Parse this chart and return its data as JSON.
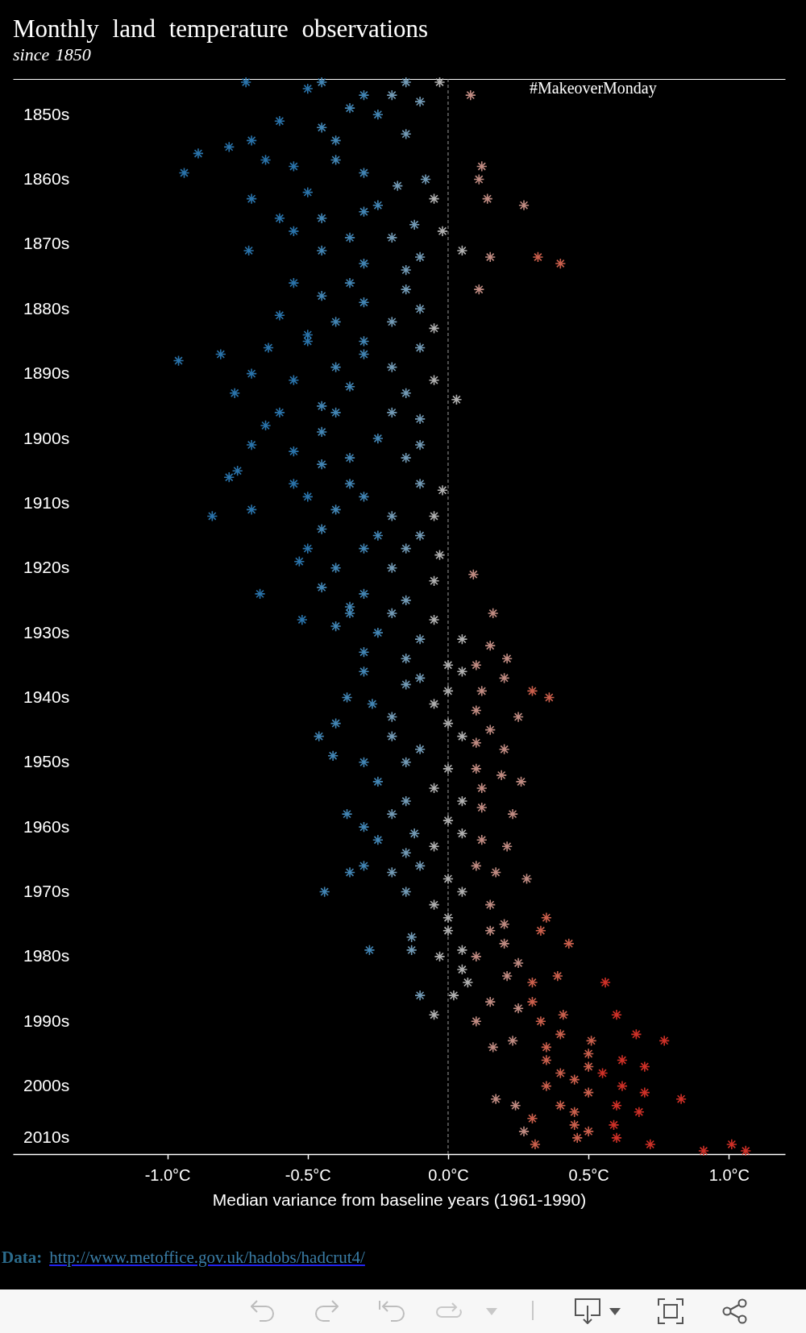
{
  "chart_data": {
    "type": "scatter",
    "orientation": "horizontal",
    "title": "Monthly land temperature observations",
    "subtitle": "since 1850",
    "xlabel": "Median variance from baseline years (1961-1990)",
    "annotations": [
      "#MakeoverMonday",
      "Data:",
      "http://www.metoffice.gov.uk/hadobs/hadcrut4/"
    ],
    "marker": "cross",
    "xlim": [
      -1.55,
      1.2
    ],
    "xticks": [
      {
        "value": -1,
        "label": "-1.0°C"
      },
      {
        "value": -0.5,
        "label": "-0.5°C"
      },
      {
        "value": 0,
        "label": "0.0°C"
      },
      {
        "value": 0.5,
        "label": "0.5°C"
      },
      {
        "value": 1,
        "label": "1.0°C"
      }
    ],
    "categories": [
      null,
      null,
      null,
      null,
      null,
      "1850s",
      null,
      null,
      null,
      null,
      null,
      null,
      null,
      null,
      null,
      "1860s",
      null,
      null,
      null,
      null,
      null,
      null,
      null,
      null,
      null,
      "1870s",
      null,
      null,
      null,
      null,
      null,
      null,
      null,
      null,
      null,
      "1880s",
      null,
      null,
      null,
      null,
      null,
      null,
      null,
      null,
      null,
      "1890s",
      null,
      null,
      null,
      null,
      null,
      null,
      null,
      null,
      null,
      "1900s",
      null,
      null,
      null,
      null,
      null,
      null,
      null,
      null,
      null,
      "1910s",
      null,
      null,
      null,
      null,
      null,
      null,
      null,
      null,
      null,
      "1920s",
      null,
      null,
      null,
      null,
      null,
      null,
      null,
      null,
      null,
      "1930s",
      null,
      null,
      null,
      null,
      null,
      null,
      null,
      null,
      null,
      "1940s",
      null,
      null,
      null,
      null,
      null,
      null,
      null,
      null,
      null,
      "1950s",
      null,
      null,
      null,
      null,
      null,
      null,
      null,
      null,
      null,
      "1960s",
      null,
      null,
      null,
      null,
      null,
      null,
      null,
      null,
      null,
      "1970s",
      null,
      null,
      null,
      null,
      null,
      null,
      null,
      null,
      null,
      "1980s",
      null,
      null,
      null,
      null,
      null,
      null,
      null,
      null,
      null,
      "1990s",
      null,
      null,
      null,
      null,
      null,
      null,
      null,
      null,
      null,
      "2000s",
      null,
      null,
      null,
      null,
      null,
      null,
      null,
      "2010s",
      null,
      null
    ],
    "ref_lines": [
      {
        "axis": "x",
        "value": 0,
        "line_style": "dashed",
        "color": "#9a9a9a"
      }
    ],
    "series": [
      {
        "color": "#2f80bd",
        "values": [
          -0.72,
          -0.5,
          null,
          null,
          null,
          null,
          -0.6,
          null,
          null,
          -0.7,
          -0.78,
          -0.89,
          -0.65,
          -0.55,
          -0.94,
          null,
          null,
          -0.5,
          -0.7,
          null,
          null,
          -0.6,
          null,
          -0.55,
          null,
          null,
          -0.71,
          null,
          null,
          null,
          null,
          -0.55,
          null,
          null,
          null,
          null,
          -0.6,
          null,
          null,
          -0.5,
          -0.5,
          -0.64,
          -0.81,
          -0.96,
          null,
          -0.7,
          -0.55,
          null,
          -0.76,
          null,
          null,
          -0.6,
          null,
          -0.65,
          null,
          null,
          -0.7,
          -0.55,
          null,
          null,
          -0.75,
          -0.78,
          -0.55,
          null,
          -0.5,
          null,
          -0.7,
          -0.84,
          null,
          null,
          null,
          null,
          -0.5,
          null,
          -0.53,
          null,
          null,
          null,
          null,
          -0.67,
          null,
          null,
          null,
          -0.52,
          null,
          null,
          null,
          null,
          null,
          null,
          null,
          null,
          null,
          null,
          null,
          null,
          null,
          null,
          null,
          null,
          null,
          null,
          null,
          null,
          null,
          null,
          null,
          null,
          null,
          null,
          null,
          null,
          null,
          null,
          null,
          null,
          null,
          null,
          null,
          null,
          null,
          null,
          null,
          null,
          null,
          null,
          null,
          null,
          null,
          null,
          null,
          null,
          null,
          null,
          null,
          null,
          null,
          null,
          null,
          null,
          null,
          null,
          null,
          null,
          null,
          null,
          null,
          null,
          null,
          null,
          null,
          null,
          null,
          null,
          null,
          null,
          null,
          null,
          null,
          null,
          null,
          null,
          null,
          null,
          null,
          null
        ]
      },
      {
        "color": "#4a94c8",
        "values": [
          -0.45,
          null,
          -0.3,
          null,
          -0.35,
          -0.25,
          null,
          -0.45,
          null,
          -0.4,
          null,
          null,
          -0.4,
          null,
          -0.3,
          null,
          null,
          null,
          null,
          -0.25,
          -0.3,
          -0.45,
          null,
          null,
          -0.35,
          null,
          -0.45,
          null,
          -0.3,
          null,
          null,
          -0.35,
          null,
          -0.45,
          -0.3,
          null,
          null,
          -0.4,
          null,
          null,
          -0.3,
          null,
          -0.3,
          null,
          -0.4,
          null,
          null,
          -0.35,
          null,
          null,
          -0.45,
          -0.4,
          null,
          null,
          -0.45,
          -0.25,
          null,
          null,
          -0.35,
          -0.45,
          null,
          null,
          -0.35,
          null,
          -0.3,
          null,
          -0.4,
          null,
          null,
          -0.45,
          -0.25,
          null,
          -0.3,
          null,
          null,
          -0.4,
          null,
          null,
          -0.45,
          -0.3,
          null,
          -0.35,
          -0.35,
          null,
          -0.4,
          -0.25,
          null,
          null,
          -0.3,
          null,
          null,
          -0.3,
          null,
          null,
          null,
          -0.36,
          -0.27,
          null,
          null,
          -0.4,
          null,
          -0.46,
          null,
          null,
          -0.41,
          -0.3,
          null,
          null,
          -0.25,
          null,
          null,
          null,
          null,
          -0.36,
          null,
          -0.3,
          null,
          -0.25,
          null,
          null,
          null,
          -0.3,
          -0.35,
          null,
          null,
          -0.44,
          null,
          null,
          null,
          null,
          null,
          null,
          null,
          null,
          -0.28,
          null,
          null,
          null,
          null,
          null,
          null,
          null,
          null,
          null,
          null,
          null,
          null,
          null,
          null,
          null,
          null,
          null,
          null,
          null,
          null,
          null,
          null,
          null,
          null,
          null,
          null,
          null,
          null,
          null,
          null,
          null
        ]
      },
      {
        "color": "#7fabc9",
        "values": [
          -0.15,
          null,
          -0.2,
          -0.1,
          null,
          null,
          null,
          null,
          -0.15,
          null,
          null,
          null,
          null,
          null,
          null,
          -0.08,
          -0.18,
          null,
          null,
          null,
          null,
          null,
          -0.12,
          null,
          -0.2,
          null,
          null,
          -0.1,
          null,
          -0.15,
          null,
          null,
          -0.15,
          null,
          null,
          -0.1,
          null,
          -0.2,
          null,
          null,
          null,
          -0.1,
          null,
          null,
          -0.2,
          null,
          null,
          null,
          -0.15,
          null,
          null,
          -0.2,
          -0.1,
          null,
          null,
          null,
          -0.1,
          null,
          -0.15,
          null,
          null,
          null,
          -0.1,
          null,
          null,
          null,
          null,
          -0.2,
          null,
          null,
          -0.1,
          null,
          -0.15,
          null,
          null,
          -0.2,
          null,
          null,
          null,
          null,
          -0.15,
          null,
          -0.2,
          null,
          null,
          null,
          -0.1,
          null,
          null,
          -0.15,
          null,
          null,
          -0.1,
          -0.15,
          null,
          null,
          null,
          null,
          -0.2,
          null,
          null,
          -0.2,
          null,
          -0.1,
          null,
          -0.15,
          null,
          null,
          null,
          null,
          null,
          -0.15,
          null,
          -0.2,
          null,
          null,
          -0.12,
          null,
          null,
          -0.15,
          null,
          -0.1,
          -0.2,
          null,
          null,
          -0.15,
          null,
          null,
          null,
          null,
          null,
          null,
          -0.13,
          null,
          -0.13,
          null,
          null,
          null,
          null,
          null,
          null,
          -0.1,
          null,
          null,
          null,
          null,
          null,
          null,
          null,
          null,
          null,
          null,
          null,
          null,
          null,
          null,
          null,
          null,
          null,
          null,
          null,
          null,
          null,
          null,
          null,
          null
        ]
      },
      {
        "color": "#c4c4c4",
        "values": [
          -0.03,
          null,
          null,
          null,
          null,
          null,
          null,
          null,
          null,
          null,
          null,
          null,
          null,
          null,
          null,
          null,
          null,
          null,
          -0.05,
          null,
          null,
          null,
          null,
          -0.02,
          null,
          null,
          0.05,
          null,
          null,
          null,
          null,
          null,
          null,
          null,
          null,
          null,
          null,
          null,
          -0.05,
          null,
          null,
          null,
          null,
          null,
          null,
          null,
          -0.05,
          null,
          null,
          0.03,
          null,
          null,
          null,
          null,
          null,
          null,
          null,
          null,
          null,
          null,
          null,
          null,
          null,
          -0.02,
          null,
          null,
          null,
          -0.05,
          null,
          null,
          null,
          null,
          null,
          -0.03,
          null,
          null,
          null,
          -0.05,
          null,
          null,
          null,
          null,
          null,
          -0.05,
          null,
          null,
          0.05,
          null,
          null,
          null,
          0,
          0.05,
          null,
          null,
          0,
          null,
          -0.05,
          null,
          null,
          0,
          null,
          0.05,
          null,
          null,
          null,
          null,
          0,
          null,
          null,
          -0.05,
          null,
          0.05,
          null,
          null,
          0,
          null,
          0.05,
          null,
          -0.05,
          null,
          null,
          null,
          null,
          0,
          null,
          0.05,
          null,
          -0.05,
          null,
          0,
          null,
          0,
          null,
          null,
          0.05,
          -0.03,
          null,
          0.05,
          null,
          0.07,
          null,
          0.02,
          null,
          null,
          -0.05,
          null,
          null,
          null,
          null,
          null,
          null,
          null,
          null,
          null,
          null,
          null,
          null,
          null,
          null,
          null,
          null,
          null,
          null,
          null,
          null,
          null
        ]
      },
      {
        "color": "#d49a90",
        "values": [
          null,
          null,
          0.08,
          null,
          null,
          null,
          null,
          null,
          null,
          null,
          null,
          null,
          null,
          0.12,
          null,
          0.11,
          null,
          null,
          0.14,
          0.27,
          null,
          null,
          null,
          null,
          null,
          null,
          null,
          0.15,
          null,
          null,
          null,
          null,
          0.11,
          null,
          null,
          null,
          null,
          null,
          null,
          null,
          null,
          null,
          null,
          null,
          null,
          null,
          null,
          null,
          null,
          null,
          null,
          null,
          null,
          null,
          null,
          null,
          null,
          null,
          null,
          null,
          null,
          null,
          null,
          null,
          null,
          null,
          null,
          null,
          null,
          null,
          null,
          null,
          null,
          null,
          null,
          null,
          0.09,
          null,
          null,
          null,
          null,
          null,
          0.16,
          null,
          null,
          null,
          null,
          0.15,
          null,
          0.21,
          0.1,
          null,
          0.2,
          null,
          0.12,
          null,
          null,
          0.1,
          0.25,
          null,
          0.15,
          null,
          0.1,
          0.2,
          null,
          null,
          0.1,
          0.19,
          0.26,
          0.12,
          null,
          null,
          0.12,
          0.23,
          null,
          null,
          null,
          0.12,
          0.21,
          null,
          null,
          0.1,
          0.17,
          0.28,
          null,
          null,
          null,
          0.15,
          null,
          null,
          0.2,
          0.15,
          null,
          0.2,
          null,
          0.1,
          0.25,
          null,
          0.21,
          null,
          null,
          null,
          0.15,
          0.25,
          null,
          0.1,
          null,
          null,
          0.23,
          0.16,
          null,
          null,
          null,
          null,
          null,
          null,
          null,
          0.17,
          0.24,
          null,
          null,
          null,
          0.27,
          null,
          null,
          null
        ]
      },
      {
        "color": "#e06a55",
        "values": [
          null,
          null,
          null,
          null,
          null,
          null,
          null,
          null,
          null,
          null,
          null,
          null,
          null,
          null,
          null,
          null,
          null,
          null,
          null,
          null,
          null,
          null,
          null,
          null,
          null,
          null,
          null,
          0.32,
          0.4,
          null,
          null,
          null,
          null,
          null,
          null,
          null,
          null,
          null,
          null,
          null,
          null,
          null,
          null,
          null,
          null,
          null,
          null,
          null,
          null,
          null,
          null,
          null,
          null,
          null,
          null,
          null,
          null,
          null,
          null,
          null,
          null,
          null,
          null,
          null,
          null,
          null,
          null,
          null,
          null,
          null,
          null,
          null,
          null,
          null,
          null,
          null,
          null,
          null,
          null,
          null,
          null,
          null,
          null,
          null,
          null,
          null,
          null,
          null,
          null,
          null,
          null,
          null,
          null,
          null,
          0.3,
          0.36,
          null,
          null,
          null,
          null,
          null,
          null,
          null,
          null,
          null,
          null,
          null,
          null,
          null,
          null,
          null,
          null,
          null,
          null,
          null,
          null,
          null,
          null,
          null,
          null,
          null,
          null,
          null,
          null,
          null,
          null,
          null,
          null,
          null,
          0.35,
          null,
          0.33,
          null,
          0.43,
          null,
          null,
          null,
          null,
          0.39,
          0.3,
          null,
          null,
          0.3,
          null,
          0.41,
          0.33,
          null,
          0.4,
          0.51,
          0.35,
          0.5,
          0.35,
          0.5,
          0.4,
          0.45,
          0.35,
          0.5,
          null,
          0.4,
          0.45,
          0.3,
          0.45,
          0.5,
          0.46,
          0.31,
          null
        ]
      },
      {
        "color": "#e5362c",
        "values": [
          null,
          null,
          null,
          null,
          null,
          null,
          null,
          null,
          null,
          null,
          null,
          null,
          null,
          null,
          null,
          null,
          null,
          null,
          null,
          null,
          null,
          null,
          null,
          null,
          null,
          null,
          null,
          null,
          null,
          null,
          null,
          null,
          null,
          null,
          null,
          null,
          null,
          null,
          null,
          null,
          null,
          null,
          null,
          null,
          null,
          null,
          null,
          null,
          null,
          null,
          null,
          null,
          null,
          null,
          null,
          null,
          null,
          null,
          null,
          null,
          null,
          null,
          null,
          null,
          null,
          null,
          null,
          null,
          null,
          null,
          null,
          null,
          null,
          null,
          null,
          null,
          null,
          null,
          null,
          null,
          null,
          null,
          null,
          null,
          null,
          null,
          null,
          null,
          null,
          null,
          null,
          null,
          null,
          null,
          null,
          null,
          null,
          null,
          null,
          null,
          null,
          null,
          null,
          null,
          null,
          null,
          null,
          null,
          null,
          null,
          null,
          null,
          null,
          null,
          null,
          null,
          null,
          null,
          null,
          null,
          null,
          null,
          null,
          null,
          null,
          null,
          null,
          null,
          null,
          null,
          null,
          null,
          null,
          null,
          null,
          null,
          null,
          null,
          null,
          0.56,
          null,
          null,
          null,
          null,
          0.6,
          null,
          null,
          0.67,
          0.77,
          null,
          null,
          0.62,
          0.7,
          0.55,
          null,
          0.62,
          0.7,
          0.83,
          0.6,
          0.68,
          null,
          0.59,
          null,
          0.6,
          0.72,
          0.91
        ]
      },
      {
        "color": "#e5362c",
        "values": [
          null,
          null,
          null,
          null,
          null,
          null,
          null,
          null,
          null,
          null,
          null,
          null,
          null,
          null,
          null,
          null,
          null,
          null,
          null,
          null,
          null,
          null,
          null,
          null,
          null,
          null,
          null,
          null,
          null,
          null,
          null,
          null,
          null,
          null,
          null,
          null,
          null,
          null,
          null,
          null,
          null,
          null,
          null,
          null,
          null,
          null,
          null,
          null,
          null,
          null,
          null,
          null,
          null,
          null,
          null,
          null,
          null,
          null,
          null,
          null,
          null,
          null,
          null,
          null,
          null,
          null,
          null,
          null,
          null,
          null,
          null,
          null,
          null,
          null,
          null,
          null,
          null,
          null,
          null,
          null,
          null,
          null,
          null,
          null,
          null,
          null,
          null,
          null,
          null,
          null,
          null,
          null,
          null,
          null,
          null,
          null,
          null,
          null,
          null,
          null,
          null,
          null,
          null,
          null,
          null,
          null,
          null,
          null,
          null,
          null,
          null,
          null,
          null,
          null,
          null,
          null,
          null,
          null,
          null,
          null,
          null,
          null,
          null,
          null,
          null,
          null,
          null,
          null,
          null,
          null,
          null,
          null,
          null,
          null,
          null,
          null,
          null,
          null,
          null,
          null,
          null,
          null,
          null,
          null,
          null,
          null,
          null,
          null,
          null,
          null,
          null,
          null,
          null,
          null,
          null,
          null,
          null,
          null,
          null,
          null,
          null,
          null,
          null,
          null,
          1.01,
          1.06
        ]
      }
    ]
  }
}
